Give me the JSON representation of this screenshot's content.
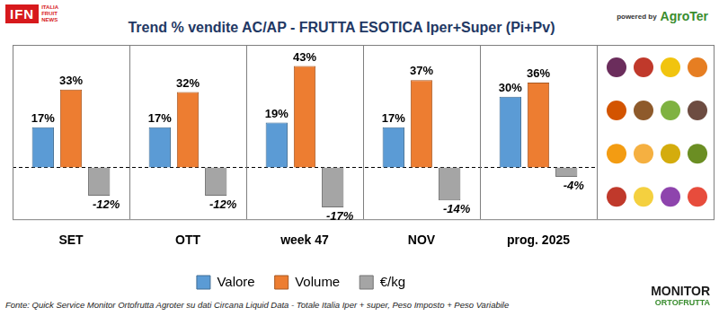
{
  "chart_data": {
    "type": "bar",
    "title": "Trend % vendite AC/AP - FRUTTA ESOTICA  Iper+Super (Pi+Pv)",
    "categories": [
      "SET",
      "OTT",
      "week 47",
      "NOV",
      "prog. 2025"
    ],
    "series": [
      {
        "name": "Valore",
        "color": "#5b9bd5",
        "values": [
          17,
          17,
          19,
          17,
          30
        ],
        "value_labels": [
          "17%",
          "17%",
          "19%",
          "17%",
          "30%"
        ]
      },
      {
        "name": "Volume",
        "color": "#ed7d31",
        "values": [
          33,
          32,
          43,
          37,
          36
        ],
        "value_labels": [
          "33%",
          "32%",
          "43%",
          "37%",
          "36%"
        ]
      },
      {
        "name": "€/kg",
        "color": "#a5a5a5",
        "values": [
          -12,
          -12,
          -17,
          -14,
          -4
        ],
        "value_labels": [
          "-12%",
          "-12%",
          "-17%",
          "-14%",
          "-4%"
        ]
      }
    ],
    "ylim": [
      -22,
      52
    ],
    "yticks": [
      0
    ],
    "grid": true,
    "legend": "bottom",
    "data_labels": true,
    "tick_labels": "x",
    "source": "Fonte: Quick Service Monitor Ortofrutta Agroter su dati Circana Liquid Data - Totale Italia Iper + super, Peso Imposto + Peso Variabile",
    "logos": {
      "ifn": [
        "IFN",
        "ITALIA",
        "FRUIT",
        "NEWS"
      ],
      "powered_by": "powered by",
      "agroter": "AgroTer",
      "monitor": [
        "MONITOR",
        "ORTOFRUTTA"
      ]
    }
  }
}
